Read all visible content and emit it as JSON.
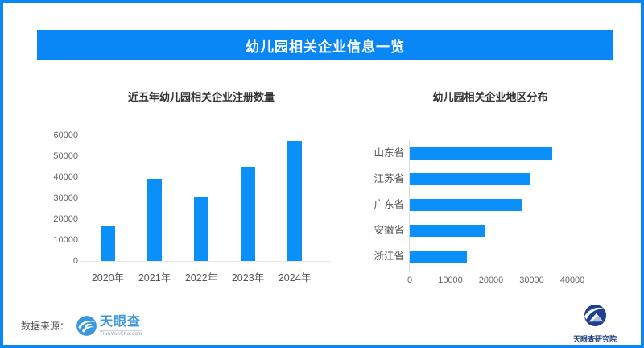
{
  "page": {
    "title": "幼儿园相关企业信息一览"
  },
  "colors": {
    "accent_blue": "#0a87f7",
    "bar_blue": "#0b90fa",
    "axis_text_gray": "#666666",
    "label_gray": "#555555",
    "chart_title_dark": "#333333",
    "tianyancha_blue": "#3a96e0",
    "institute_navy": "#1d3c78"
  },
  "footer": {
    "source_label": "数据来源：",
    "tianyancha": {
      "name": "天眼查",
      "domain": "TianYanCha.com",
      "icon": "tianyancha-eye-icon"
    },
    "institute": {
      "name": "天眼查研究院",
      "icon": "tianyancha-institute-icon"
    }
  },
  "chart_data": [
    {
      "type": "bar",
      "orientation": "vertical",
      "title": "近五年幼儿园相关企业注册数量",
      "categories": [
        "2020年",
        "2021年",
        "2022年",
        "2023年",
        "2024年"
      ],
      "values": [
        16500,
        39300,
        30700,
        45000,
        57300
      ],
      "xlabel": "",
      "ylabel": "",
      "ylim": [
        0,
        60000
      ],
      "yticks": [
        0,
        10000,
        20000,
        30000,
        40000,
        50000,
        60000
      ],
      "grid": false,
      "legend": "none",
      "bar_color": "#0b90fa"
    },
    {
      "type": "bar",
      "orientation": "horizontal",
      "title": "幼儿园相关企业地区分布",
      "categories": [
        "山东省",
        "江苏省",
        "广东省",
        "安徽省",
        "浙江省"
      ],
      "values": [
        35000,
        29800,
        27800,
        18600,
        14100
      ],
      "xlabel": "",
      "ylabel": "",
      "xlim": [
        0,
        40000
      ],
      "xticks": [
        0,
        10000,
        20000,
        30000,
        40000
      ],
      "grid": false,
      "legend": "none",
      "bar_color": "#0b90fa"
    }
  ]
}
